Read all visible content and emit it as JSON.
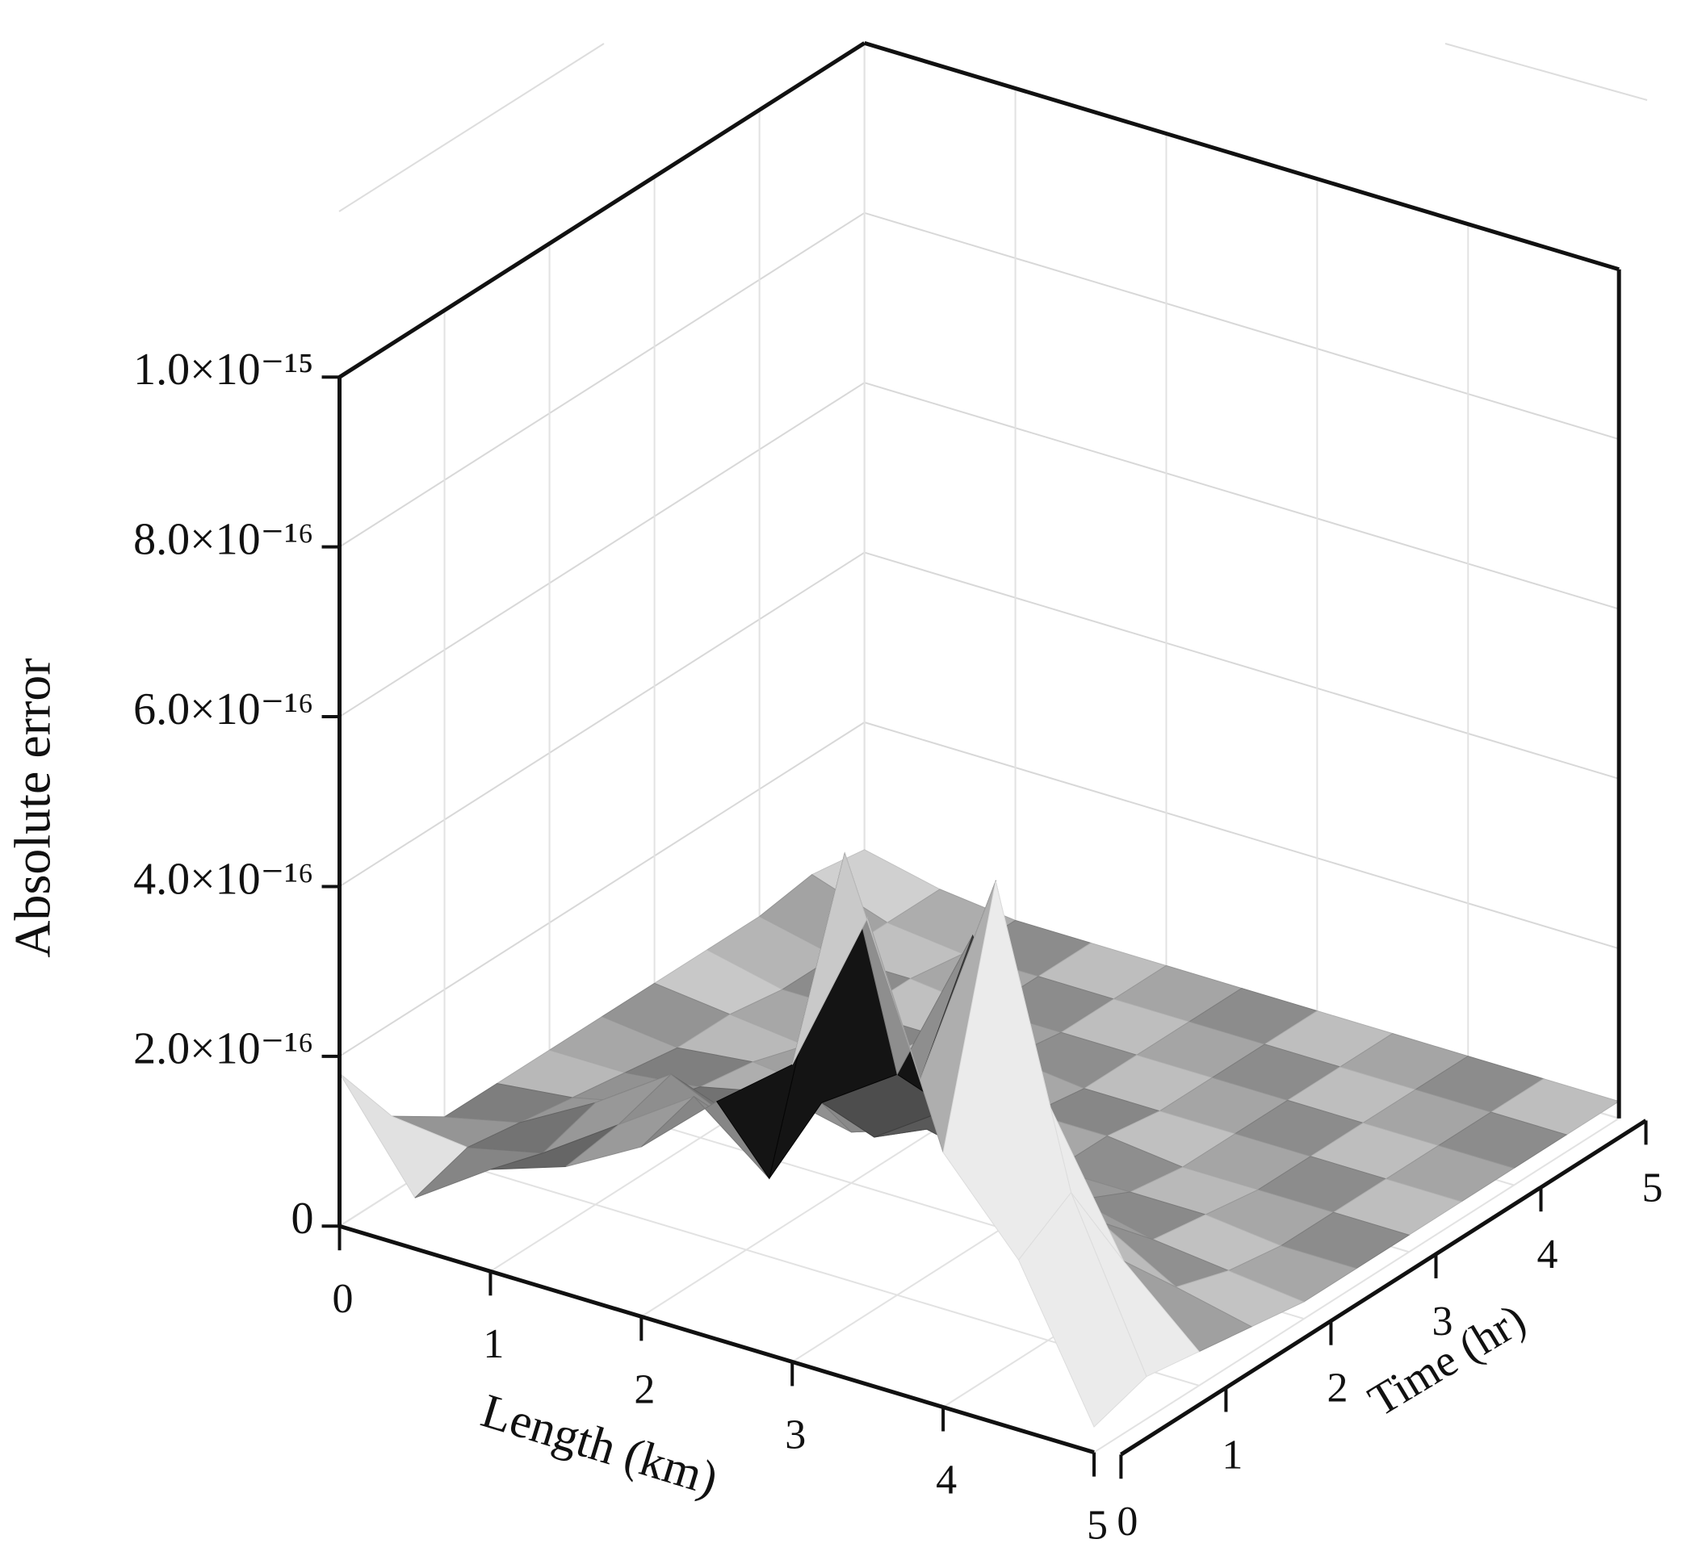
{
  "chart_data": {
    "type": "surface",
    "zlabel": "Absolute error",
    "xlabel": "Length (km)",
    "ylabel": "Time (hr)",
    "xlim": [
      0,
      5
    ],
    "ylim": [
      0,
      5
    ],
    "zlim": [
      0,
      1e-15
    ],
    "xticks": [
      0,
      1,
      2,
      3,
      4,
      5
    ],
    "yticks": [
      0,
      1,
      2,
      3,
      4,
      5
    ],
    "zticks": [
      0,
      {
        "value": 2e-16,
        "label": "2.0×10⁻¹⁶"
      },
      {
        "value": 4e-16,
        "label": "4.0×10⁻¹⁶"
      },
      {
        "value": 6e-16,
        "label": "6.0×10⁻¹⁶"
      },
      {
        "value": 8e-16,
        "label": "8.0×10⁻¹⁶"
      },
      {
        "value": 1e-15,
        "label": "1.0×10⁻¹⁵"
      }
    ],
    "grid": true,
    "x": [
      0,
      0.5,
      1,
      1.5,
      2,
      2.5,
      3,
      3.5,
      4,
      4.5,
      5
    ],
    "y": [
      0,
      0.5,
      1,
      1.5,
      2,
      2.5,
      3,
      3.5,
      4,
      4.5,
      5
    ],
    "z": [
      [
        1.8e-16,
        6e-17,
        1.2e-16,
        1.5e-16,
        2e-16,
        2.8e-16,
        3.5e-16,
        5.5e-16,
        3e-16,
        2e-16,
        3e-17
      ],
      [
        9e-17,
        8e-17,
        1e-16,
        1.6e-16,
        2.2e-16,
        1.5e-16,
        5.6e-16,
        3.2e-16,
        5.8e-16,
        2.4e-16,
        5e-17
      ],
      [
        5e-17,
        7e-17,
        1.2e-16,
        1.8e-16,
        1.4e-16,
        2e-16,
        2.6e-16,
        4.5e-16,
        2.8e-16,
        1.2e-16,
        4e-17
      ],
      [
        5e-17,
        6e-17,
        8e-17,
        1e-16,
        1.6e-16,
        1.2e-16,
        1.8e-16,
        1.5e-16,
        1e-16,
        5e-17,
        3e-17
      ],
      [
        5e-17,
        5e-17,
        6e-17,
        8e-17,
        6e-17,
        9e-17,
        7e-17,
        6e-17,
        4e-17,
        3e-17,
        2e-17
      ],
      [
        5e-17,
        4e-17,
        5e-17,
        4e-17,
        5e-17,
        4e-17,
        3e-17,
        3e-17,
        3e-17,
        2e-17,
        2e-17
      ],
      [
        5e-17,
        4e-17,
        3e-17,
        4e-17,
        3e-17,
        3e-17,
        3e-17,
        2e-17,
        2e-17,
        2e-17,
        2e-17
      ],
      [
        5e-17,
        3e-17,
        3e-17,
        3e-17,
        3e-17,
        2e-17,
        2e-17,
        2e-17,
        2e-17,
        2e-17,
        2e-17
      ],
      [
        5e-17,
        3e-17,
        3e-17,
        2e-17,
        2e-17,
        2e-17,
        2e-17,
        2e-17,
        2e-17,
        2e-17,
        2e-17
      ],
      [
        6e-17,
        3e-17,
        2e-17,
        2e-17,
        2e-17,
        2e-17,
        2e-17,
        2e-17,
        2e-17,
        2e-17,
        2e-17
      ],
      [
        5e-17,
        3e-17,
        2e-17,
        2e-17,
        2e-17,
        2e-17,
        2e-17,
        2e-17,
        2e-17,
        2e-17,
        2e-17
      ]
    ]
  }
}
